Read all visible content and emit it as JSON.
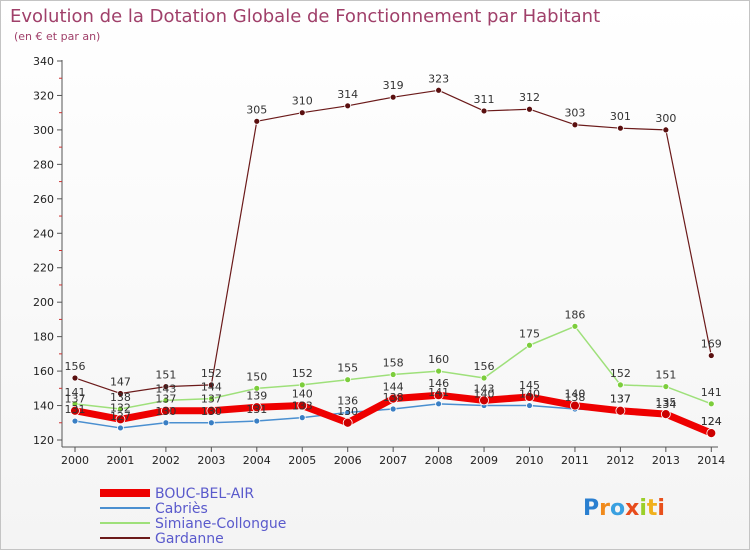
{
  "chart_data": {
    "type": "line",
    "title": "Evolution de la Dotation Globale de Fonctionnement par Habitant",
    "subtitle": "(en € et par an)",
    "xlabel": "",
    "ylabel": "",
    "categories": [
      "2000",
      "2001",
      "2002",
      "2003",
      "2004",
      "2005",
      "2006",
      "2007",
      "2008",
      "2009",
      "2010",
      "2011",
      "2012",
      "2013",
      "2014"
    ],
    "ylim": [
      120,
      340
    ],
    "yticks": [
      120,
      140,
      160,
      180,
      200,
      220,
      240,
      260,
      280,
      300,
      320,
      340
    ],
    "grid": false,
    "legend_position": "bottom-left",
    "series": [
      {
        "name": "Gardanne",
        "color": "#6b1a1a",
        "marker": "#5a0f0f",
        "width": 1.2,
        "labels": true,
        "values": [
          156,
          147,
          151,
          152,
          305,
          310,
          314,
          319,
          323,
          311,
          312,
          303,
          301,
          300,
          169
        ]
      },
      {
        "name": "Simiane-Collongue",
        "color": "#9ee07a",
        "marker": "#7ccd3c",
        "width": 1.5,
        "labels": true,
        "values": [
          141,
          138,
          143,
          144,
          150,
          152,
          155,
          158,
          160,
          156,
          175,
          186,
          152,
          151,
          141
        ]
      },
      {
        "name": "Cabriès",
        "color": "#4a8fd0",
        "marker": "#3a7fc4",
        "width": 1.5,
        "labels": true,
        "values": [
          131,
          127,
          130,
          130,
          131,
          133,
          136,
          138,
          141,
          140,
          140,
          138,
          137,
          134,
          124
        ]
      },
      {
        "name": "BOUC-BEL-AIR",
        "color": "#ee0000",
        "marker": "#cc0000",
        "width": 7,
        "labels": true,
        "values": [
          137,
          132,
          137,
          137,
          139,
          140,
          130,
          144,
          146,
          143,
          145,
          140,
          137,
          135,
          124
        ]
      }
    ],
    "legend_order": [
      "BOUC-BEL-AIR",
      "Cabriès",
      "Simiane-Collongue",
      "Gardanne"
    ]
  },
  "branding": {
    "logo_text": "Proxiti"
  }
}
